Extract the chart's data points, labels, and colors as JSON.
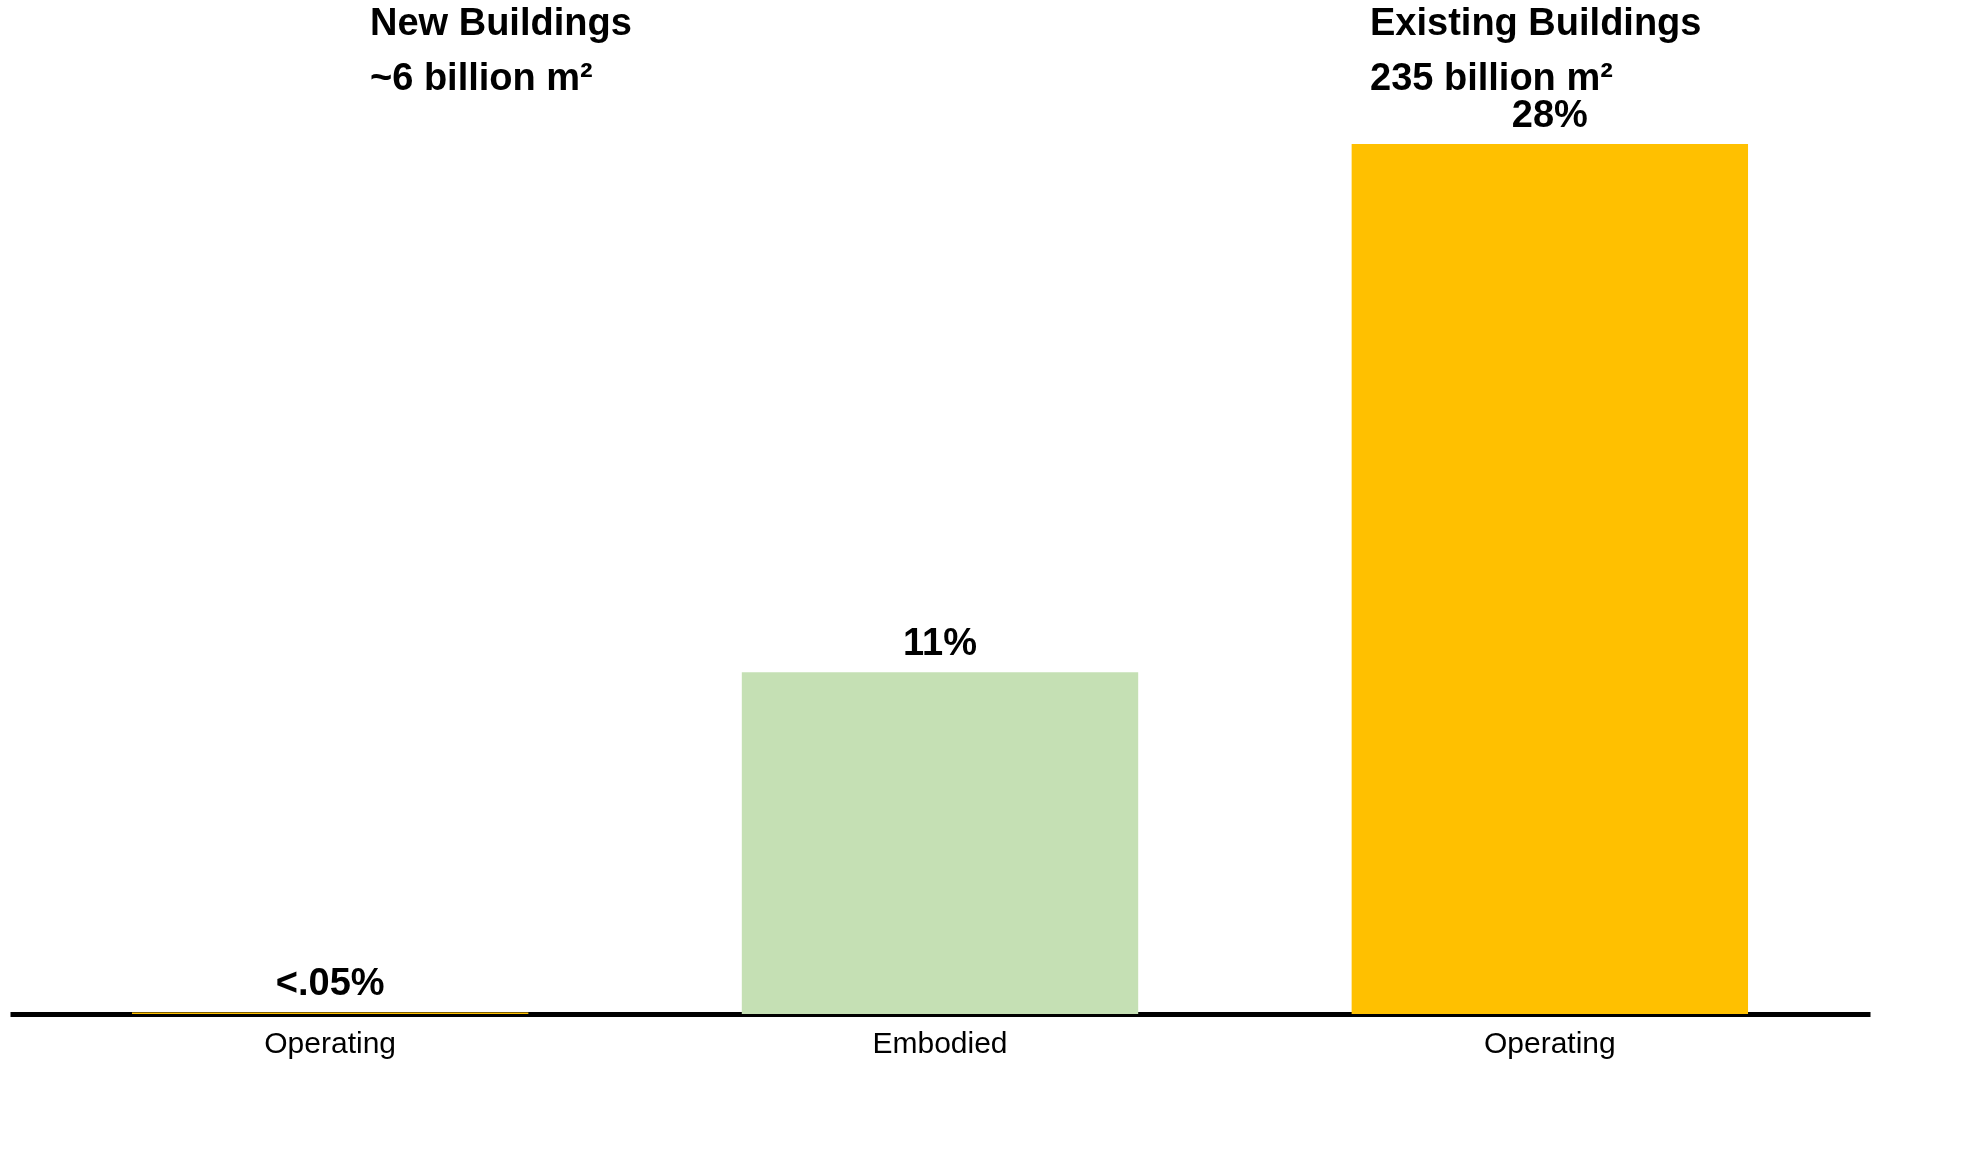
{
  "chart_data": {
    "type": "bar",
    "categories": [
      "Operating",
      "Embodied",
      "Operating"
    ],
    "values": [
      0.05,
      11,
      28
    ],
    "colors": [
      "#ffc000",
      "#c5e0b4",
      "#ffc000"
    ],
    "value_labels": [
      "<.05%",
      "11%",
      "28%"
    ],
    "annotations": [
      "New Buildings",
      "~6 billion m²",
      "Existing Buildings",
      "235 billion m²"
    ]
  }
}
